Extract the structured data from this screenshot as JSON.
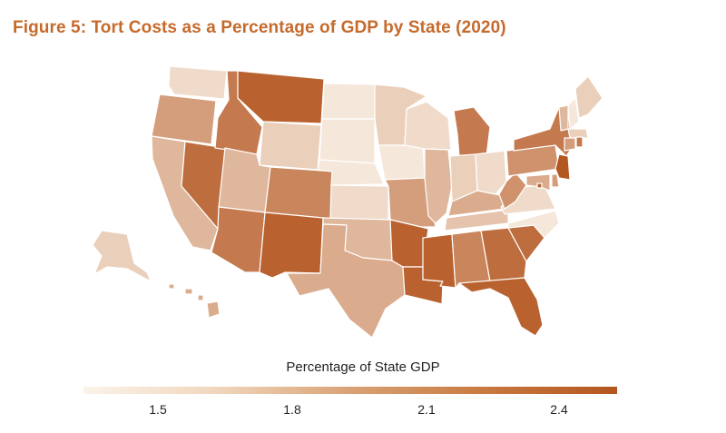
{
  "title": "Figure 5: Tort Costs as a Percentage of GDP by State (2020)",
  "legend": {
    "title": "Percentage of State GDP",
    "ticks": [
      "1.5",
      "1.8",
      "2.1",
      "2.4"
    ]
  },
  "colors": {
    "title": "#c66a2c",
    "scale_low": "#fbf3ea",
    "scale_high": "#b3561f"
  },
  "chart_data": {
    "type": "choropleth",
    "legend_range": [
      1.3,
      2.6
    ],
    "tick_values": [
      1.5,
      1.8,
      2.1,
      2.4
    ],
    "states": {
      "WA": 1.5,
      "OR": 2.0,
      "CA": 1.8,
      "NV": 2.4,
      "ID": 2.3,
      "MT": 2.5,
      "WY": 1.6,
      "UT": 1.8,
      "AZ": 2.3,
      "CO": 2.2,
      "NM": 2.5,
      "ND": 1.4,
      "SD": 1.4,
      "NE": 1.4,
      "KS": 1.5,
      "OK": 1.8,
      "TX": 1.9,
      "MN": 1.6,
      "IA": 1.4,
      "MO": 2.0,
      "AR": 2.5,
      "LA": 2.5,
      "WI": 1.5,
      "IL": 1.8,
      "MS": 2.5,
      "MI": 2.3,
      "IN": 1.6,
      "OH": 1.5,
      "KY": 1.9,
      "TN": 1.7,
      "AL": 2.2,
      "GA": 2.4,
      "FL": 2.5,
      "SC": 2.4,
      "NC": 1.4,
      "VA": 1.5,
      "WV": 2.1,
      "PA": 2.1,
      "NY": 2.3,
      "ME": 1.6,
      "VT": 1.8,
      "NH": 1.4,
      "MA": 1.6,
      "CT": 2.0,
      "RI": 2.3,
      "NJ": 2.6,
      "DE": 2.0,
      "MD": 1.9,
      "DC": 2.5,
      "AK": 1.6,
      "HI": 1.9
    }
  }
}
